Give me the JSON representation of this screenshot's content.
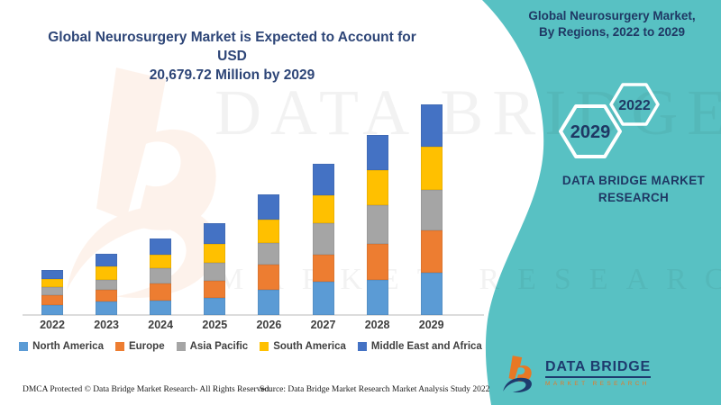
{
  "header": {
    "chart_title_line1": "Global Neurosurgery Market is Expected to Account for USD",
    "chart_title_line2": "20,679.72 Million by 2029"
  },
  "panel": {
    "title_line1": "Global Neurosurgery Market,",
    "title_line2": "By Regions, 2022 to 2029",
    "hexagon_back_label": "2029",
    "hexagon_front_label": "2022",
    "brand_text": "DATA BRIDGE MARKET RESEARCH",
    "accent_color": "#58c1c3"
  },
  "logo": {
    "name_text": "DATA BRIDGE",
    "subtitle_text": "MARKET RESEARCH"
  },
  "watermark": {
    "line1": "DATA BRIDGE",
    "line2": "MARKET RESEARCH"
  },
  "footer": {
    "left_text": "DMCA Protected © Data Bridge Market Research- All Rights Reserved.",
    "right_text": "Source: Data Bridge Market Research Market Analysis Study 2022"
  },
  "chart_data": {
    "type": "bar",
    "stacked": true,
    "title": "Global Neurosurgery Market is Expected to Account for USD 20,679.72 Million by 2029",
    "xlabel": "",
    "ylabel": "",
    "unit": "USD Million (values estimated from bar heights; stated 2029 total = 20,679.72)",
    "axis_value_labels_shown": false,
    "grid": false,
    "legend_position": "bottom",
    "categories": [
      "2022",
      "2023",
      "2024",
      "2025",
      "2026",
      "2027",
      "2028",
      "2029"
    ],
    "series": [
      {
        "name": "North America",
        "color": "#5B9BD5",
        "values": [
          970,
          1330,
          1410,
          1680,
          2470,
          3270,
          3450,
          4160
        ]
      },
      {
        "name": "Europe",
        "color": "#ED7D31",
        "values": [
          970,
          1150,
          1680,
          1680,
          2470,
          2650,
          3540,
          4160
        ]
      },
      {
        "name": "Asia Pacific",
        "color": "#A5A5A5",
        "values": [
          800,
          970,
          1500,
          1770,
          2120,
          3090,
          3800,
          3980
        ]
      },
      {
        "name": "South America",
        "color": "#FFC000",
        "values": [
          800,
          1330,
          1330,
          1860,
          2300,
          2740,
          3450,
          4240
        ]
      },
      {
        "name": "Middle East and Africa",
        "color": "#4472C4",
        "values": [
          880,
          1240,
          1590,
          2030,
          2470,
          3090,
          3450,
          4140
        ]
      }
    ],
    "totals": [
      4420,
      6020,
      7510,
      9020,
      11830,
      14840,
      17690,
      20680
    ]
  }
}
